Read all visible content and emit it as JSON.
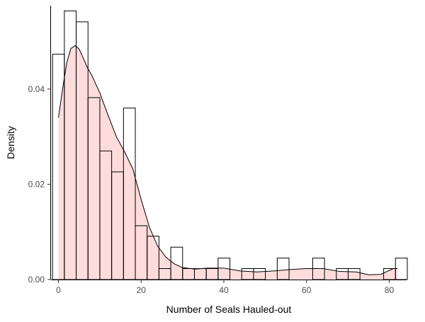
{
  "chart_data": {
    "type": "histogram",
    "xlabel": "Number of Seals Hauled-out",
    "ylabel": "Density",
    "xlim": [
      -1.8,
      84.2
    ],
    "ylim": [
      0,
      0.0575
    ],
    "x_ticks": [
      0,
      20,
      40,
      60,
      80
    ],
    "y_ticks": [
      0.0,
      0.02,
      0.04
    ],
    "x_tick_labels": [
      "0",
      "20",
      "40",
      "60",
      "80"
    ],
    "y_tick_labels": [
      "0.00",
      "0.02",
      "0.04",
      ""
    ],
    "bin_width": 2.86,
    "histogram": {
      "bin_starts": [
        -1.43,
        1.43,
        4.29,
        7.15,
        10.01,
        12.87,
        15.73,
        18.59,
        21.45,
        24.31,
        27.17,
        30.03,
        32.89,
        35.75,
        38.61,
        41.47,
        44.33,
        47.19,
        50.05,
        52.91,
        55.77,
        58.63,
        61.49,
        64.35,
        67.21,
        70.07,
        72.93,
        75.79,
        78.65,
        81.51
      ],
      "density": [
        0.0473,
        0.0564,
        0.0541,
        0.0382,
        0.027,
        0.0226,
        0.036,
        0.0113,
        0.0091,
        0.0023,
        0.0068,
        0.0023,
        0.0023,
        0.0023,
        0.0045,
        0.0,
        0.0023,
        0.0023,
        0.0,
        0.0045,
        0.0,
        0.0,
        0.0045,
        0.0,
        0.0023,
        0.0023,
        0.0,
        0.0,
        0.0023,
        0.0045
      ],
      "fill": "#ffffff",
      "stroke": "#000000"
    },
    "density_curve": {
      "x": [
        0,
        1,
        2,
        3,
        4,
        5,
        6,
        7,
        8,
        10,
        12,
        14,
        16,
        18,
        19,
        20,
        22,
        24,
        26,
        28,
        30,
        33,
        36,
        40,
        44,
        48,
        52,
        56,
        60,
        64,
        68,
        72,
        75,
        78,
        81,
        82
      ],
      "y": [
        0.034,
        0.04,
        0.0455,
        0.0485,
        0.0491,
        0.0484,
        0.0465,
        0.0445,
        0.043,
        0.0392,
        0.0345,
        0.03,
        0.0268,
        0.0232,
        0.02,
        0.0168,
        0.011,
        0.007,
        0.0047,
        0.0033,
        0.0025,
        0.0022,
        0.0024,
        0.0024,
        0.0018,
        0.0016,
        0.0018,
        0.0021,
        0.0023,
        0.0023,
        0.0017,
        0.0016,
        0.001,
        0.0011,
        0.0023,
        0.0023
      ],
      "fill": "#ffdcdc",
      "stroke": "#000000"
    },
    "grid": false,
    "legend": false
  }
}
